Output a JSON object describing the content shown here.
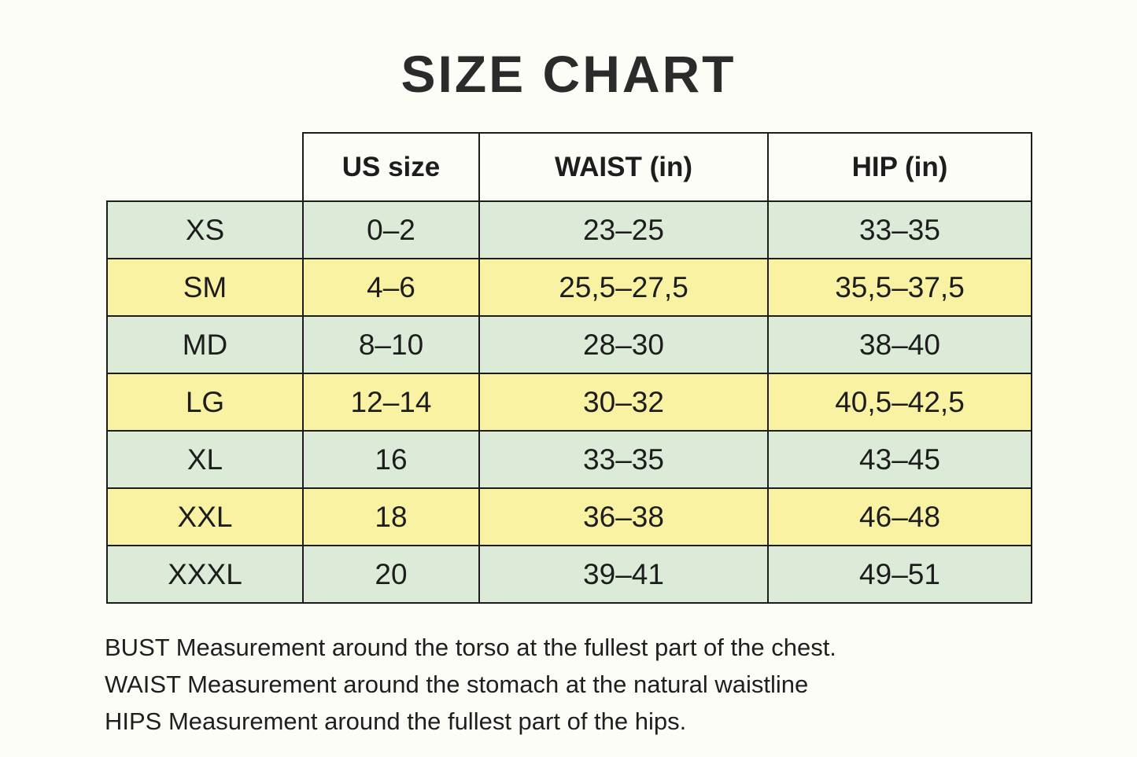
{
  "page": {
    "background_color": "#fdfdf8",
    "title_color": "#2b2b2b"
  },
  "chart_data": {
    "type": "table",
    "title": "SIZE CHART",
    "columns": [
      "US size",
      "WAIST (in)",
      "HIP (in)"
    ],
    "rows": [
      [
        "XS",
        "0–2",
        "23–25",
        "33–35"
      ],
      [
        "SM",
        "4–6",
        "25,5–27,5",
        "35,5–37,5"
      ],
      [
        "MD",
        "8–10",
        "28–30",
        "38–40"
      ],
      [
        "LG",
        "12–14",
        "30–32",
        "40,5–42,5"
      ],
      [
        "XL",
        "16",
        "33–35",
        "43–45"
      ],
      [
        "XXL",
        "18",
        "36–38",
        "46–48"
      ],
      [
        "XXXL",
        "20",
        "39–41",
        "49–51"
      ]
    ],
    "row_colors_alternating": [
      "#dcebd8",
      "#f8f2a2"
    ],
    "border_color": "#1d1d1d",
    "notes": [
      "BUST Measurement around the torso at the fullest part of the chest.",
      "WAIST Measurement around the stomach at the natural waistline",
      "HIPS Measurement around the fullest part of the hips."
    ]
  }
}
